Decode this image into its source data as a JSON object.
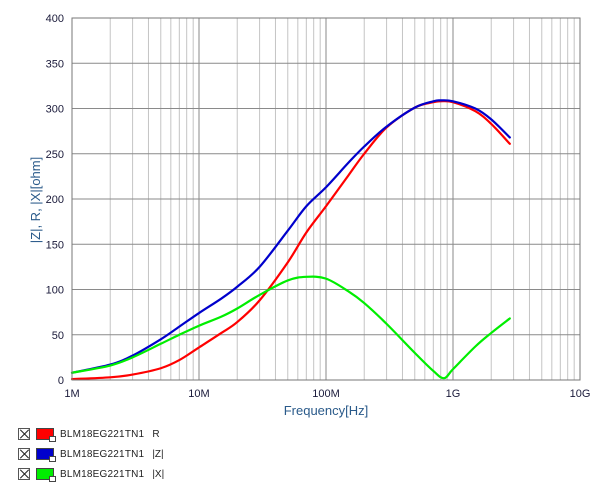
{
  "chart_data": {
    "type": "line",
    "xscale": "log",
    "xlabel": "Frequency[Hz]",
    "ylabel": "|Z|, R, |X|[ohm]",
    "xlim": [
      1000000,
      10000000000
    ],
    "ylim": [
      0,
      400
    ],
    "grid": true,
    "x_ticks": [
      {
        "value": 1000000,
        "label": "1M"
      },
      {
        "value": 10000000,
        "label": "10M"
      },
      {
        "value": 100000000,
        "label": "100M"
      },
      {
        "value": 1000000000,
        "label": "1G"
      },
      {
        "value": 10000000000,
        "label": "10G"
      }
    ],
    "y_ticks": [
      {
        "value": 0,
        "label": "0"
      },
      {
        "value": 50,
        "label": "50"
      },
      {
        "value": 100,
        "label": "100"
      },
      {
        "value": 150,
        "label": "150"
      },
      {
        "value": 200,
        "label": "200"
      },
      {
        "value": 250,
        "label": "250"
      },
      {
        "value": 300,
        "label": "300"
      },
      {
        "value": 350,
        "label": "350"
      },
      {
        "value": 400,
        "label": "400"
      }
    ],
    "series": [
      {
        "name": "BLM18EG221TN1",
        "param": "R",
        "color": "#ff0000",
        "x": [
          1000000,
          2000000,
          3000000,
          5000000,
          7000000,
          10000000,
          15000000,
          20000000,
          30000000,
          50000000,
          70000000,
          100000000,
          150000000,
          200000000,
          300000000,
          500000000,
          700000000,
          800000000,
          1000000000,
          1500000000,
          2000000000,
          2800000000
        ],
        "y": [
          1,
          3,
          6,
          13,
          22,
          36,
          52,
          64,
          88,
          130,
          163,
          192,
          226,
          250,
          279,
          301,
          307,
          308,
          307,
          297,
          283,
          261
        ]
      },
      {
        "name": "BLM18EG221TN1",
        "param": "|Z|",
        "color": "#0000cc",
        "x": [
          1000000,
          2000000,
          3000000,
          5000000,
          7000000,
          10000000,
          15000000,
          20000000,
          30000000,
          50000000,
          70000000,
          100000000,
          150000000,
          200000000,
          300000000,
          500000000,
          700000000,
          800000000,
          1000000000,
          1500000000,
          2000000000,
          2800000000
        ],
        "y": [
          8,
          17,
          27,
          45,
          59,
          74,
          90,
          103,
          125,
          165,
          192,
          213,
          240,
          258,
          280,
          301,
          308,
          309,
          308,
          300,
          288,
          268
        ]
      },
      {
        "name": "BLM18EG221TN1",
        "param": "|X|",
        "color": "#00ee00",
        "x": [
          1000000,
          2000000,
          3000000,
          5000000,
          7000000,
          10000000,
          15000000,
          20000000,
          30000000,
          50000000,
          70000000,
          100000000,
          150000000,
          200000000,
          300000000,
          500000000,
          700000000,
          850000000,
          1000000000,
          1500000000,
          2000000000,
          2800000000
        ],
        "y": [
          8,
          16,
          25,
          40,
          50,
          60,
          70,
          79,
          94,
          110,
          114,
          112,
          98,
          85,
          62,
          30,
          10,
          2,
          12,
          37,
          52,
          68
        ]
      }
    ]
  },
  "legend": {
    "items": [
      {
        "name": "BLM18EG221TN1",
        "param": "R",
        "color": "#ff0000"
      },
      {
        "name": "BLM18EG221TN1",
        "param": "|Z|",
        "color": "#0000cc"
      },
      {
        "name": "BLM18EG221TN1",
        "param": "|X|",
        "color": "#00ee00"
      }
    ]
  }
}
